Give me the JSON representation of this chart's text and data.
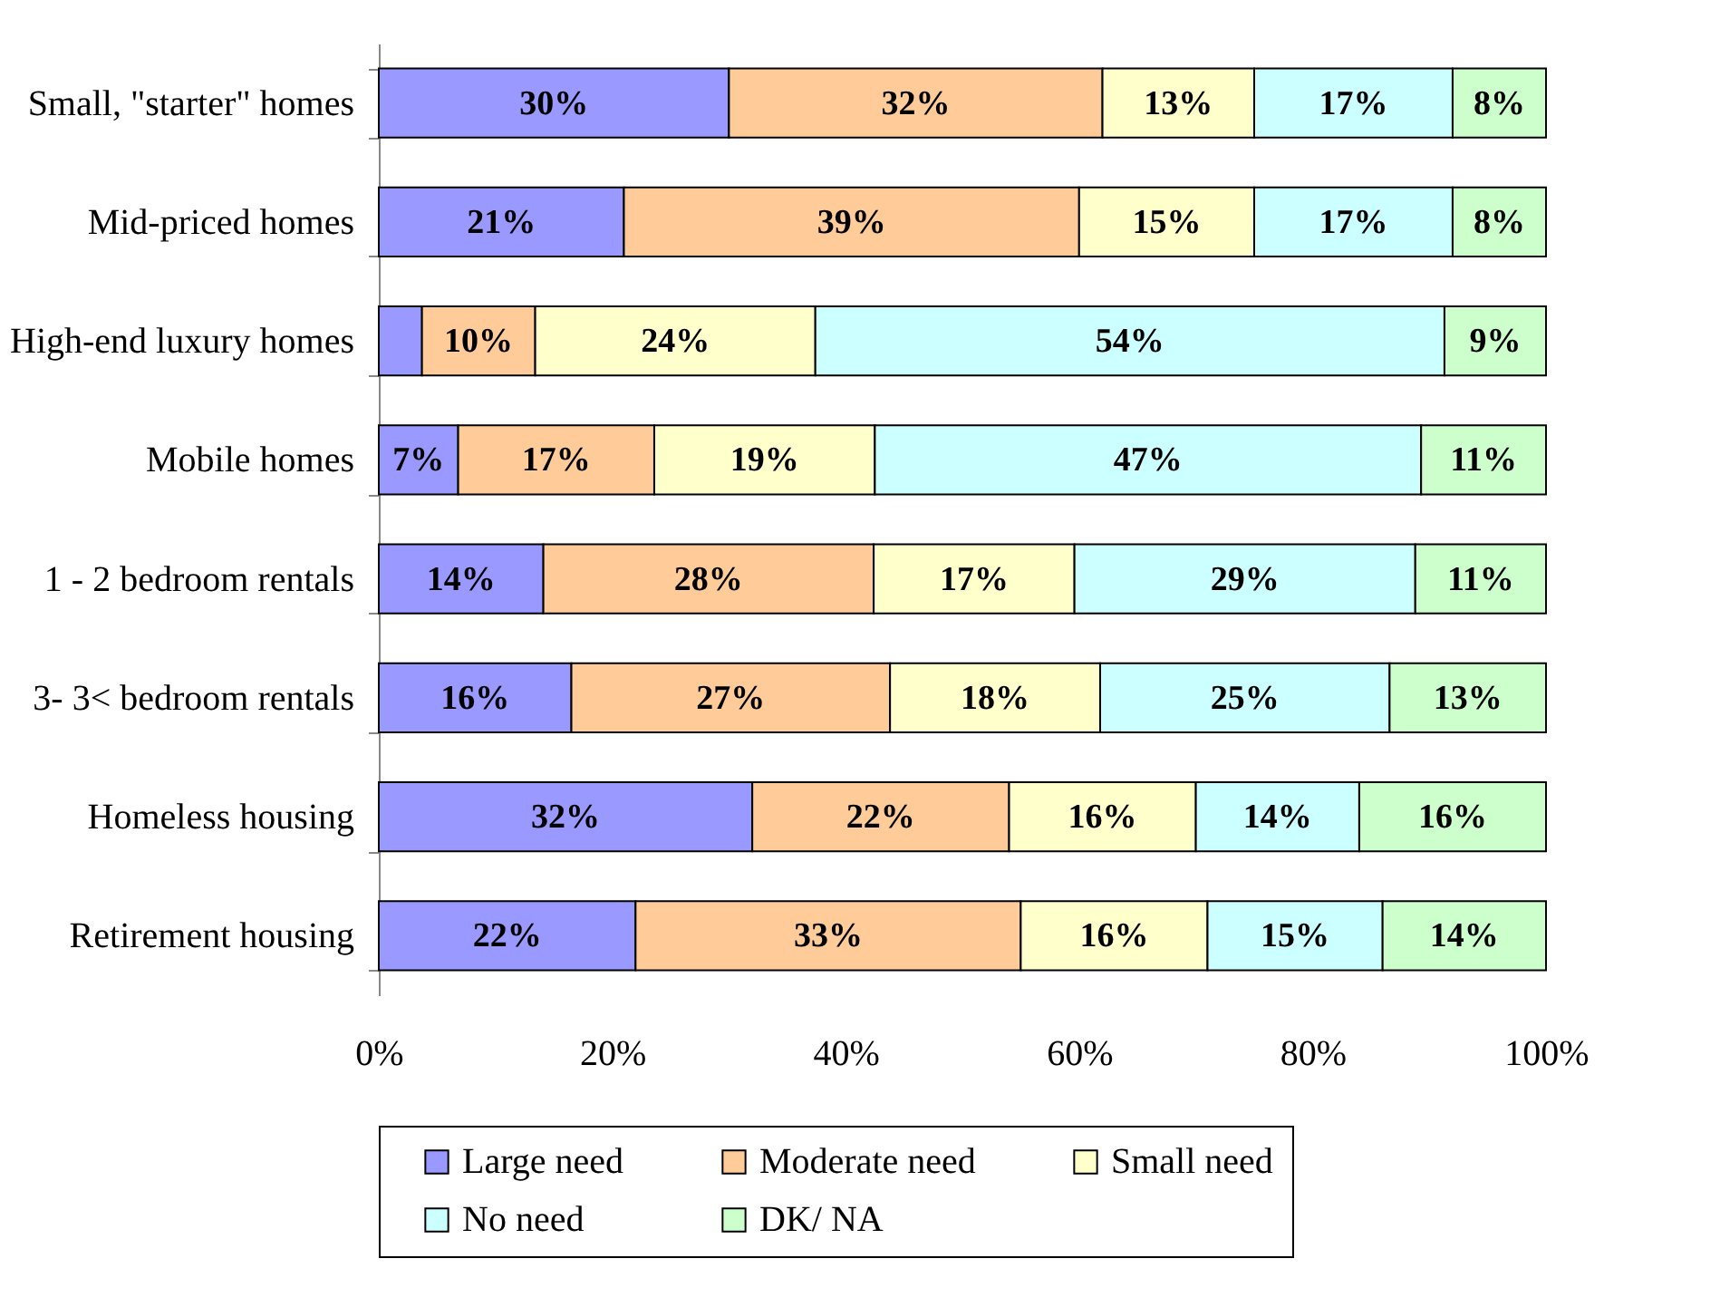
{
  "chart_data": {
    "type": "bar",
    "orientation": "horizontal",
    "stacked": true,
    "categories": [
      "Small, \"starter\" homes",
      "Mid-priced homes",
      "High-end luxury homes",
      "Mobile homes",
      "1 - 2 bedroom rentals",
      "3- 3< bedroom rentals",
      "Homeless housing",
      "Retirement housing"
    ],
    "series": [
      {
        "name": "Large need",
        "color": "#9999ff",
        "values": [
          30,
          21,
          3.7,
          6.8,
          14.1,
          16.5,
          32,
          22
        ],
        "value_labels": [
          "30%",
          "21%",
          null,
          "7%",
          "14%",
          "16%",
          "32%",
          "22%"
        ]
      },
      {
        "name": "Moderate need",
        "color": "#ffcc99",
        "values": [
          32,
          39,
          9.7,
          16.8,
          28.3,
          27.3,
          22,
          33
        ],
        "value_labels": [
          "32%",
          "39%",
          "10%",
          "17%",
          "28%",
          "27%",
          "22%",
          "33%"
        ]
      },
      {
        "name": "Small need",
        "color": "#ffffcc",
        "values": [
          13,
          15,
          24,
          18.9,
          17.2,
          18,
          16,
          16
        ],
        "value_labels": [
          "13%",
          "15%",
          "24%",
          "19%",
          "17%",
          "18%",
          "16%",
          "16%"
        ]
      },
      {
        "name": "No need",
        "color": "#ccffff",
        "values": [
          17,
          17,
          53.9,
          46.8,
          29.2,
          24.8,
          14,
          15
        ],
        "value_labels": [
          "17%",
          "17%",
          "54%",
          "47%",
          "29%",
          "25%",
          "14%",
          "15%"
        ]
      },
      {
        "name": "DK/ NA",
        "color": "#ccffcc",
        "values": [
          8,
          8,
          8.7,
          10.7,
          11.2,
          13.4,
          16,
          14
        ],
        "value_labels": [
          "8%",
          "8%",
          "9%",
          "11%",
          "11%",
          "13%",
          "16%",
          "14%"
        ]
      }
    ],
    "xlim": [
      0,
      100
    ],
    "xticks": [
      {
        "value": 0,
        "label": "0%"
      },
      {
        "value": 20,
        "label": "20%"
      },
      {
        "value": 40,
        "label": "40%"
      },
      {
        "value": 60,
        "label": "60%"
      },
      {
        "value": 80,
        "label": "80%"
      },
      {
        "value": 100,
        "label": "100%"
      }
    ],
    "grid": false,
    "legend": "bottom"
  }
}
